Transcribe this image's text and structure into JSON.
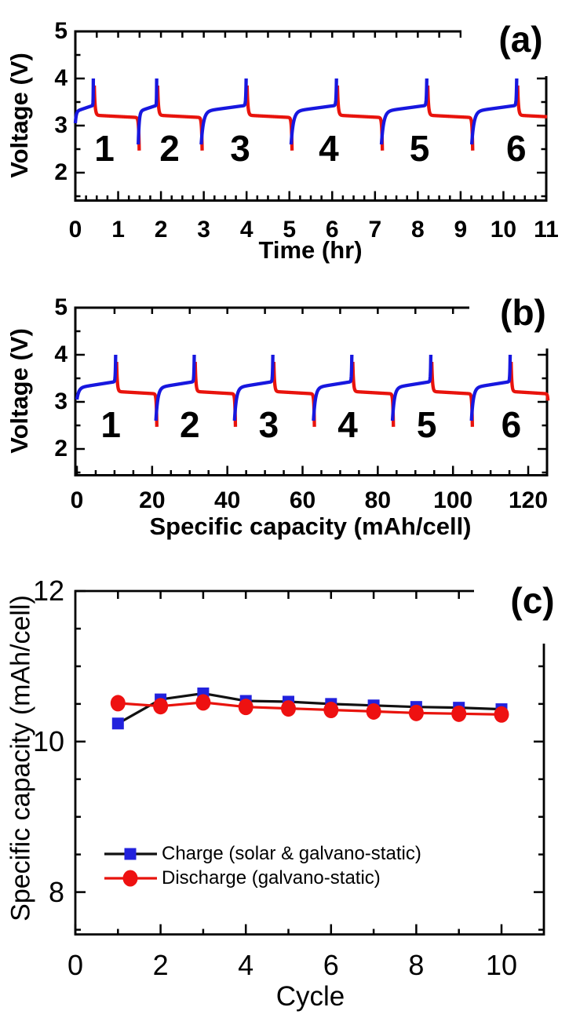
{
  "figure": {
    "background": "#ffffff",
    "panels": [
      {
        "tag": "(a)",
        "x_title": "Time (hr)",
        "y_title": "Voltage (V)",
        "x_tick_labels": [
          "0",
          "1",
          "2",
          "3",
          "4",
          "5",
          "6",
          "7",
          "8",
          "9",
          "10",
          "11"
        ],
        "x_tick_values": [
          0,
          1,
          2,
          3,
          4,
          5,
          6,
          7,
          8,
          9,
          10,
          11
        ],
        "y_tick_labels": [
          "5",
          "4",
          "3",
          "2"
        ],
        "y_tick_values": [
          5,
          4,
          3,
          2
        ]
      },
      {
        "tag": "(b)",
        "x_title": "Specific capacity (mAh/cell)",
        "y_title": "Voltage (V)",
        "x_tick_labels": [
          "0",
          "20",
          "40",
          "60",
          "80",
          "100",
          "120"
        ],
        "x_tick_values": [
          0,
          20,
          40,
          60,
          80,
          100,
          120
        ],
        "y_tick_labels": [
          "5",
          "4",
          "3",
          "2"
        ],
        "y_tick_values": [
          5,
          4,
          3,
          2
        ]
      },
      {
        "tag": "(c)",
        "x_title": "Cycle",
        "y_title": "Specific capacity (mAh/cell)",
        "x_tick_labels": [
          "0",
          "2",
          "4",
          "6",
          "8",
          "10"
        ],
        "x_tick_values": [
          0,
          2,
          4,
          6,
          8,
          10
        ],
        "y_tick_labels": [
          "12",
          "10",
          "8"
        ],
        "y_tick_values": [
          12,
          10,
          8
        ]
      }
    ]
  },
  "colors": {
    "charge_blue": "#1717DF",
    "discharge_red": "#E8130C",
    "marker_blue": "#2222DD",
    "marker_red": "#EE1111",
    "charge_line_black": "#111111",
    "axis_black": "#000000"
  },
  "chart_data": [
    {
      "id": "a",
      "type": "line",
      "xlabel": "Time (hr)",
      "ylabel": "Voltage (V)",
      "xlim": [
        0,
        11
      ],
      "ylim": [
        1.42,
        5
      ],
      "x_major_ticks": [
        0,
        1,
        2,
        3,
        4,
        5,
        6,
        7,
        8,
        9,
        10,
        11
      ],
      "x_minor_step": 0.25,
      "y_major_ticks": [
        2,
        3,
        4,
        5
      ],
      "y_minor_ticks": [
        1.5,
        2.5,
        3.5,
        4.5
      ],
      "series": [
        {
          "name": "charge",
          "color": "#1717DF"
        },
        {
          "name": "discharge",
          "color": "#E8130C"
        }
      ],
      "v_first_charge_start": 3.05,
      "v_charge_start": 2.6,
      "v_charge_peak": 4.0,
      "v_charge_plateau": [
        3.3,
        3.43
      ],
      "v_discharge_start": 3.85,
      "v_discharge_plateau": [
        3.27,
        3.17
      ],
      "v_discharge_min": 2.47,
      "cycles": [
        {
          "n": 1,
          "charge": [
            0.0,
            0.42
          ],
          "discharge": [
            0.42,
            1.47
          ]
        },
        {
          "n": 2,
          "charge": [
            1.47,
            1.9
          ],
          "discharge": [
            1.9,
            2.94
          ]
        },
        {
          "n": 3,
          "charge": [
            2.94,
            3.99
          ],
          "discharge": [
            3.99,
            5.04
          ]
        },
        {
          "n": 4,
          "charge": [
            5.04,
            6.1
          ],
          "discharge": [
            6.1,
            7.15
          ]
        },
        {
          "n": 5,
          "charge": [
            7.15,
            8.21
          ],
          "discharge": [
            8.21,
            9.26
          ]
        },
        {
          "n": 6,
          "charge": [
            9.26,
            10.31
          ],
          "discharge": [
            10.31,
            11.37
          ]
        }
      ],
      "cycle_labels": [
        {
          "text": "1",
          "x": 0.68
        },
        {
          "text": "2",
          "x": 2.2
        },
        {
          "text": "3",
          "x": 3.85
        },
        {
          "text": "4",
          "x": 5.92
        },
        {
          "text": "5",
          "x": 8.04
        },
        {
          "text": "6",
          "x": 10.3
        }
      ],
      "cycle_label_v": 2.52
    },
    {
      "id": "b",
      "type": "line",
      "xlabel": "Specific capacity (mAh/cell)",
      "ylabel": "Voltage (V)",
      "xlim": [
        0,
        125
      ],
      "ylim": [
        1.45,
        5
      ],
      "x_major_ticks": [
        0,
        20,
        40,
        60,
        80,
        100,
        120
      ],
      "x_minor_step": 5,
      "y_major_ticks": [
        2,
        3,
        4,
        5
      ],
      "y_minor_ticks": [
        1.5,
        2.5,
        3.5,
        4.5
      ],
      "series": [
        {
          "name": "charge",
          "color": "#1717DF"
        },
        {
          "name": "discharge",
          "color": "#E8130C"
        }
      ],
      "v_first_charge_start": 3.05,
      "v_charge_start": 2.6,
      "v_charge_peak": 4.0,
      "v_charge_plateau": [
        3.3,
        3.45
      ],
      "v_discharge_start": 3.85,
      "v_discharge_plateau": [
        3.27,
        3.15
      ],
      "v_discharge_min": 2.47,
      "cycles": [
        {
          "n": 1,
          "charge": [
            0.0,
            10.3
          ],
          "discharge": [
            10.3,
            21.0
          ]
        },
        {
          "n": 2,
          "charge": [
            21.0,
            31.2
          ],
          "discharge": [
            31.2,
            41.9
          ]
        },
        {
          "n": 3,
          "charge": [
            41.9,
            52.1
          ],
          "discharge": [
            52.1,
            62.9
          ]
        },
        {
          "n": 4,
          "charge": [
            62.9,
            73.1
          ],
          "discharge": [
            73.1,
            83.9
          ]
        },
        {
          "n": 5,
          "charge": [
            83.9,
            94.1
          ],
          "discharge": [
            94.1,
            104.9
          ]
        },
        {
          "n": 6,
          "charge": [
            104.9,
            115.2
          ],
          "discharge": [
            115.2,
            125.2
          ]
        }
      ],
      "cycle_labels": [
        {
          "text": "1",
          "x": 9
        },
        {
          "text": "2",
          "x": 30
        },
        {
          "text": "3",
          "x": 51
        },
        {
          "text": "4",
          "x": 72
        },
        {
          "text": "5",
          "x": 93
        },
        {
          "text": "6",
          "x": 115.5
        }
      ],
      "cycle_label_v": 2.52
    },
    {
      "id": "c",
      "type": "line",
      "xlabel": "Cycle",
      "ylabel": "Specific capacity (mAh/cell)",
      "xlim": [
        0,
        11
      ],
      "ylim": [
        7.45,
        12
      ],
      "x_major_ticks": [
        0,
        2,
        4,
        6,
        8,
        10
      ],
      "x_minor_ticks": [
        1,
        3,
        5,
        7,
        9
      ],
      "y_major_ticks": [
        8,
        10,
        12
      ],
      "y_minor_step": 0.5,
      "x": [
        1,
        2,
        3,
        4,
        5,
        6,
        7,
        8,
        9,
        10
      ],
      "series": [
        {
          "name": "Charge (solar & galvano-static)",
          "marker": "square",
          "marker_color": "#2222DD",
          "line_color": "#111111",
          "values": [
            10.24,
            10.56,
            10.64,
            10.54,
            10.53,
            10.5,
            10.48,
            10.46,
            10.45,
            10.43
          ]
        },
        {
          "name": "Discharge (galvano-static)",
          "marker": "circle",
          "marker_color": "#EE1111",
          "line_color": "#E8130C",
          "values": [
            10.51,
            10.47,
            10.52,
            10.46,
            10.44,
            10.42,
            10.4,
            10.38,
            10.37,
            10.36
          ]
        }
      ],
      "legend_position": "lower left"
    }
  ]
}
